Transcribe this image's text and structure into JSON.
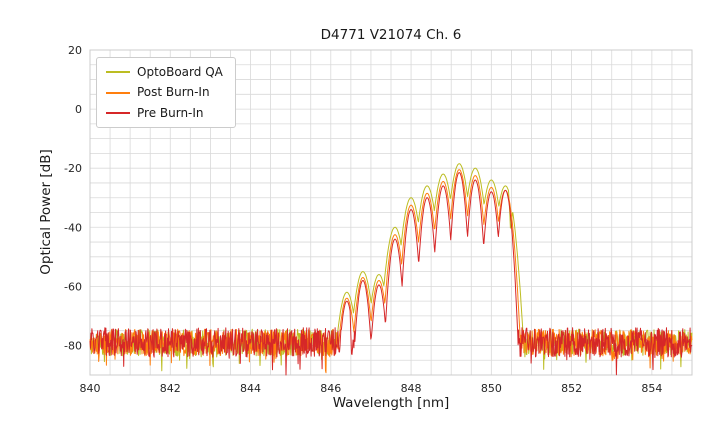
{
  "chart_data": {
    "type": "line",
    "title": "D4771 V21074 Ch. 6",
    "xlabel": "Wavelength [nm]",
    "ylabel": "Optical Power [dB]",
    "xlim": [
      840,
      855
    ],
    "ylim": [
      -90,
      20
    ],
    "xticks": [
      840,
      842,
      844,
      846,
      848,
      850,
      852,
      854
    ],
    "yticks": [
      20,
      0,
      -20,
      -40,
      -60,
      -80
    ],
    "grid": {
      "x_minor_step": 0.5,
      "y_minor_step": 5,
      "color": "#d9d9d9",
      "frame_color": "#cccccc"
    },
    "legend": {
      "position": "upper-left",
      "entries": [
        "OptoBoard QA",
        "Post Burn-In",
        "Pre Burn-In"
      ]
    },
    "series": [
      {
        "name": "OptoBoard QA",
        "color": "#bcbd22",
        "noise_floor": -79,
        "noise_amplitude": 4.5,
        "mode_width_nm": 0.062,
        "seed": 11,
        "modes": [
          [
            846.4,
            -62
          ],
          [
            846.8,
            -55
          ],
          [
            847.2,
            -56
          ],
          [
            847.6,
            -40
          ],
          [
            848.0,
            -30
          ],
          [
            848.4,
            -26
          ],
          [
            848.8,
            -22
          ],
          [
            849.2,
            -18.5
          ],
          [
            849.6,
            -20
          ],
          [
            850.0,
            -24
          ],
          [
            850.35,
            -26
          ]
        ],
        "notches": [
          [
            850.48,
            11,
            0.05
          ]
        ]
      },
      {
        "name": "Post Burn-In",
        "color": "#ff7f0e",
        "noise_floor": -79,
        "noise_amplitude": 4.5,
        "mode_width_nm": 0.052,
        "seed": 22,
        "modes": [
          [
            846.4,
            -64
          ],
          [
            846.8,
            -57
          ],
          [
            847.2,
            -58
          ],
          [
            847.6,
            -42.5
          ],
          [
            848.0,
            -32.5
          ],
          [
            848.4,
            -28.5
          ],
          [
            848.8,
            -24.5
          ],
          [
            849.2,
            -20.5
          ],
          [
            849.6,
            -22.5
          ],
          [
            850.0,
            -26.5
          ],
          [
            850.35,
            -27.5
          ]
        ],
        "notches": []
      },
      {
        "name": "Pre Burn-In",
        "color": "#d62728",
        "noise_floor": -79,
        "noise_amplitude": 5,
        "mode_width_nm": 0.044,
        "seed": 33,
        "modes": [
          [
            846.4,
            -65
          ],
          [
            846.8,
            -58
          ],
          [
            847.2,
            -59.5
          ],
          [
            847.6,
            -44
          ],
          [
            848.0,
            -34
          ],
          [
            848.4,
            -30
          ],
          [
            848.8,
            -26
          ],
          [
            849.2,
            -21.5
          ],
          [
            849.6,
            -24
          ],
          [
            850.0,
            -28
          ],
          [
            850.35,
            -27.5
          ]
        ],
        "notches": [
          [
            846.52,
            12,
            0.04
          ]
        ]
      }
    ]
  }
}
